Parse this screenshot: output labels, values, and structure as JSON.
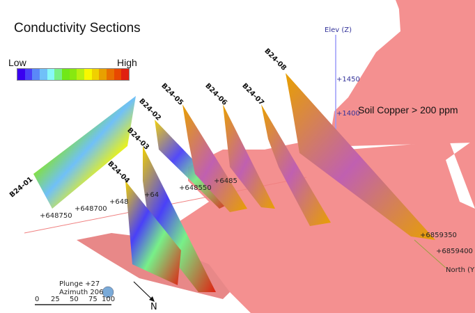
{
  "title": "Conductivity Sections",
  "legend": {
    "low_label": "Low",
    "high_label": "High",
    "colors": [
      "#3a00f0",
      "#4a40f8",
      "#5a88f8",
      "#70c0f8",
      "#88f8f8",
      "#78f088",
      "#70e818",
      "#88e810",
      "#b8f010",
      "#f8f800",
      "#f0d000",
      "#e8a000",
      "#e87000",
      "#e84800",
      "#e02010"
    ]
  },
  "drillholes": [
    "B24-01",
    "B24-02",
    "B24-03",
    "B24-04",
    "B24-05",
    "B24-06",
    "B24-07",
    "B24-08"
  ],
  "easting_ticks": [
    "+648750",
    "+648700",
    "+648",
    "+64",
    "+648550",
    "+6485"
  ],
  "elevation_axis": {
    "label": "Elev (Z)",
    "ticks": [
      "+1450",
      "+1400"
    ]
  },
  "northing_axis": {
    "label": "North (Y)",
    "ticks": [
      "+6859350",
      "+6859400"
    ]
  },
  "soil_label": "Soil Copper > 200 ppm",
  "soil_color": "#f49090",
  "view": {
    "plunge": "Plunge +27",
    "azimuth": "Azimuth 206"
  },
  "scale_ticks": [
    "0",
    "25",
    "50",
    "75",
    "100"
  ],
  "north_arrow": "N"
}
